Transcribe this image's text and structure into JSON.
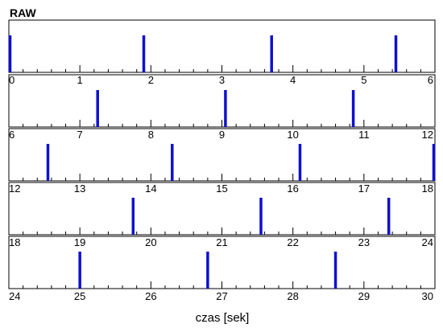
{
  "chart_data": {
    "type": "bar",
    "title": "RAW",
    "xlabel": "czas [sek]",
    "ylabel": "",
    "grid": false,
    "series_color": "#1010cc",
    "panels": [
      {
        "xlim": [
          0,
          6
        ],
        "ticks": [
          0,
          1,
          2,
          3,
          4,
          5,
          6
        ],
        "events": [
          0.0,
          1.9,
          3.7,
          5.45
        ]
      },
      {
        "xlim": [
          6,
          12
        ],
        "ticks": [
          6,
          7,
          8,
          9,
          10,
          11,
          12
        ],
        "events": [
          7.25,
          9.05,
          10.85
        ]
      },
      {
        "xlim": [
          12,
          18
        ],
        "ticks": [
          12,
          13,
          14,
          15,
          16,
          17,
          18
        ],
        "events": [
          12.55,
          14.3,
          16.1,
          17.99
        ]
      },
      {
        "xlim": [
          18,
          24
        ],
        "ticks": [
          18,
          19,
          20,
          21,
          22,
          23,
          24
        ],
        "events": [
          19.75,
          21.55,
          23.35
        ]
      },
      {
        "xlim": [
          24,
          30
        ],
        "ticks": [
          24,
          25,
          26,
          27,
          28,
          29,
          30
        ],
        "events": [
          25.0,
          26.8,
          28.6
        ]
      }
    ]
  }
}
